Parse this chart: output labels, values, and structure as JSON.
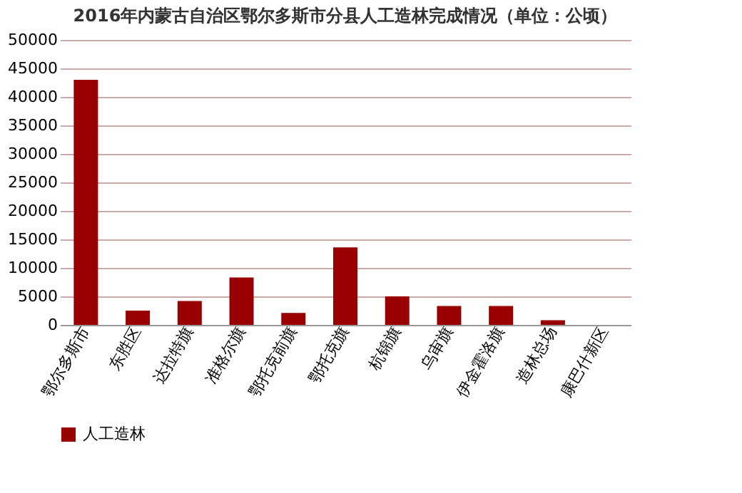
{
  "chart_data": {
    "type": "bar",
    "title": "2016年内蒙古自治区鄂尔多斯市分县人工造林完成情况（单位：公顷）",
    "categories": [
      "鄂尔多斯市",
      "东胜区",
      "达拉特旗",
      "准格尔旗",
      "鄂托克前旗",
      "鄂托克旗",
      "杭锦旗",
      "乌审旗",
      "伊金霍洛旗",
      "造林总场",
      "康巴什新区"
    ],
    "series": [
      {
        "name": "人工造林",
        "color": "#990000",
        "values": [
          43000,
          2500,
          4200,
          8300,
          2100,
          13600,
          5000,
          3300,
          3300,
          800,
          0
        ]
      }
    ],
    "ylim": [
      0,
      50000
    ],
    "yticks": [
      0,
      5000,
      10000,
      15000,
      20000,
      25000,
      30000,
      35000,
      40000,
      45000,
      50000
    ],
    "grid": "y",
    "legend": "bottom"
  }
}
